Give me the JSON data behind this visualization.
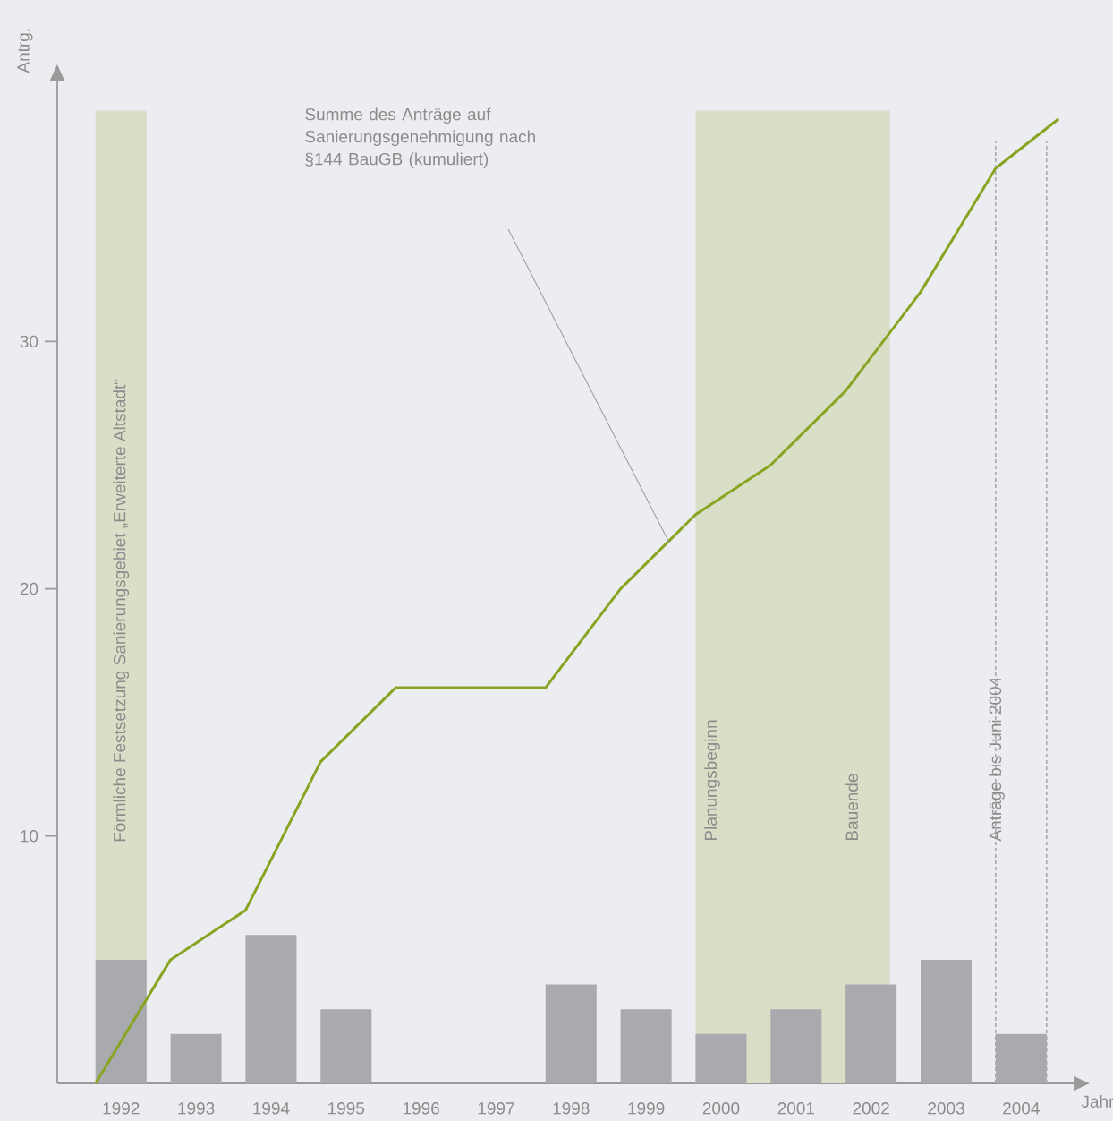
{
  "chart_data": {
    "type": "bar",
    "xlabel": "Jahr",
    "ylabel": "Antrg.",
    "xlim": [
      1991.15,
      2004.7
    ],
    "ylim": [
      0,
      40.55
    ],
    "xticks": [
      1992,
      1993,
      1994,
      1995,
      1996,
      1997,
      1998,
      1999,
      2000,
      2001,
      2002,
      2003,
      2004
    ],
    "yticks": [
      10,
      20,
      30
    ],
    "series": [
      {
        "color": "#a9aaae",
        "x": [
          1992,
          1993,
          1994,
          1995,
          1996,
          1997,
          1998,
          1999,
          2000,
          2001,
          2002,
          2003,
          2004
        ],
        "values": [
          5,
          2,
          6,
          3,
          0,
          0,
          4,
          3,
          2,
          3,
          4,
          5,
          2
        ]
      },
      {
        "type": "line",
        "color": "#8aa322",
        "x": [
          1991.66,
          1992.66,
          1993.66,
          1994.66,
          1995.66,
          1996.66,
          1997.66,
          1998.66,
          1999.66,
          2000.66,
          2001.66,
          2002.66,
          2003.66,
          2004.5
        ],
        "values": [
          0,
          5,
          7,
          13,
          16,
          16,
          16,
          20,
          23,
          25,
          28,
          32,
          37,
          39
        ]
      }
    ],
    "bands": [
      {
        "axis": "x",
        "from": 1991.66,
        "to": 1992.34,
        "color": "#d9dec6",
        "label": "Förmliche Festsetzung Sanierungsgebiet „Erweiterte Altstadt“"
      },
      {
        "axis": "x",
        "from": 1999.66,
        "to": 2002.25,
        "color": "#d9dec6"
      }
    ],
    "ref_lines": [
      {
        "axis": "x",
        "value": 2003.66,
        "color": "#a9aaae",
        "line_style": "dotted"
      },
      {
        "axis": "x",
        "value": 2004.34,
        "color": "#a9aaae",
        "line_style": "dotted"
      }
    ],
    "annotations": [
      "Planungsbeginn",
      "Bauende",
      "Anträge bis Juni 2004",
      "Summe des Anträge auf Sanierungsgenehmigung nach §144 BauGB (kumuliert)"
    ],
    "grid": false,
    "marker": "none"
  }
}
